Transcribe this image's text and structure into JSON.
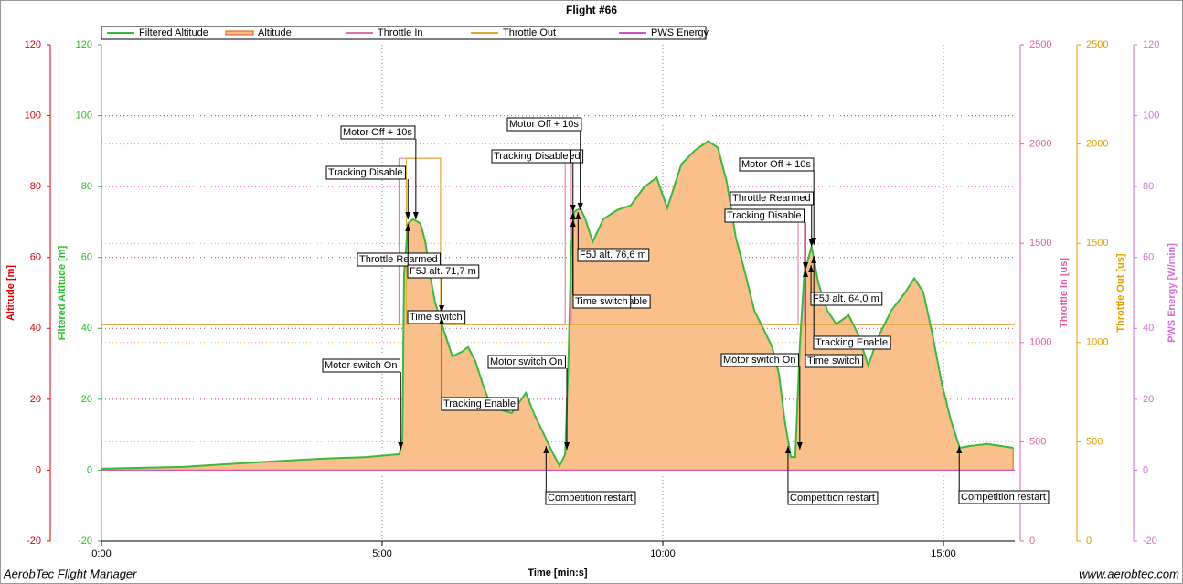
{
  "chart_data": {
    "type": "line",
    "title": "Flight #66",
    "x_label": "Time [min:s]",
    "footer_left": "AerobTec Flight Manager",
    "footer_right": "www.aerobtec.com",
    "xlim": [
      0,
      16.27
    ],
    "xticks": [
      {
        "value": 0,
        "label": "0:00"
      },
      {
        "value": 5,
        "label": "5:00"
      },
      {
        "value": 10,
        "label": "10:00"
      },
      {
        "value": 15,
        "label": "15:00"
      }
    ],
    "grid": true,
    "axes": [
      {
        "label": "Altitude [m]",
        "color": "#dd0000",
        "grid_color": "#e04040",
        "side": "left",
        "lim": [
          -20,
          120
        ],
        "ticks": [
          -20,
          0,
          20,
          40,
          60,
          80,
          100,
          120
        ],
        "grid": true
      },
      {
        "label": "Filtered Altitude [m]",
        "color": "#2eb82e",
        "side": "left",
        "lim": [
          -20,
          120
        ],
        "ticks": [
          -20,
          0,
          20,
          40,
          60,
          80,
          100,
          120
        ],
        "grid": false
      },
      {
        "label": "Throttle In [us]",
        "color": "#e060a0",
        "side": "right",
        "lim": [
          0,
          2500
        ],
        "ticks": [
          0,
          500,
          1000,
          1500,
          2000,
          2500
        ],
        "grid": false
      },
      {
        "label": "Throttle Out [us]",
        "color": "#e0a000",
        "grid_color": "#e8b040",
        "side": "right",
        "lim": [
          0,
          2500
        ],
        "ticks": [
          0,
          500,
          1000,
          1500,
          2000,
          2500
        ],
        "grid": true
      },
      {
        "label": "PWS Energy [W/min]",
        "color": "#d070d8",
        "side": "right",
        "lim": [
          -20,
          120
        ],
        "ticks": [
          -20,
          0,
          20,
          40,
          60,
          80,
          100,
          120
        ],
        "grid": false
      }
    ],
    "x": [
      0.0,
      1.45,
      2.26,
      3.08,
      3.89,
      4.71,
      5.31,
      5.36,
      5.39,
      5.46,
      5.55,
      5.68,
      5.77,
      5.85,
      5.94,
      6.09,
      6.17,
      6.25,
      6.42,
      6.53,
      6.66,
      6.79,
      6.91,
      7.07,
      7.31,
      7.56,
      7.72,
      7.88,
      8.05,
      8.16,
      8.26,
      8.32,
      8.37,
      8.42,
      8.53,
      8.62,
      8.75,
      8.94,
      9.19,
      9.43,
      9.67,
      9.89,
      10.08,
      10.33,
      10.57,
      10.81,
      10.98,
      11.14,
      11.3,
      11.47,
      11.63,
      11.79,
      11.95,
      12.07,
      12.17,
      12.28,
      12.36,
      12.44,
      12.52,
      12.65,
      12.77,
      12.93,
      13.09,
      13.31,
      13.47,
      13.66,
      13.83,
      14.07,
      14.32,
      14.48,
      14.64,
      14.8,
      14.97,
      15.13,
      15.29,
      15.46,
      15.78,
      16.24
    ],
    "series": [
      {
        "name": "Filtered Altitude",
        "color": "#3cb83c",
        "axis": 1,
        "style": "line",
        "values": [
          0.4,
          0.9,
          1.7,
          2.5,
          3.2,
          3.7,
          4.5,
          8.9,
          55.4,
          69.6,
          70.8,
          69.6,
          64.4,
          55.4,
          47.6,
          39.9,
          36.0,
          32.1,
          33.4,
          34.7,
          30.8,
          24.4,
          19.2,
          17.2,
          16.1,
          21.8,
          15.4,
          10.2,
          4.5,
          1.2,
          4.5,
          32.1,
          63.1,
          72.9,
          73.9,
          70.8,
          64.4,
          70.8,
          73.4,
          74.7,
          79.9,
          82.5,
          73.9,
          86.3,
          90.2,
          92.8,
          91.0,
          81.2,
          65.7,
          55.4,
          45.0,
          39.9,
          34.7,
          27.0,
          14.1,
          3.7,
          3.7,
          34.7,
          55.4,
          63.1,
          52.8,
          45.0,
          41.2,
          43.7,
          38.6,
          29.5,
          37.3,
          45.0,
          50.2,
          54.1,
          50.2,
          38.6,
          24.4,
          14.1,
          6.3,
          6.8,
          7.4,
          6.3
        ]
      },
      {
        "name": "Altitude",
        "color": "#e85010",
        "fill": "#f9c08c",
        "axis": 0,
        "style": "area",
        "values": [
          0.4,
          0.9,
          1.7,
          2.5,
          3.2,
          3.7,
          4.5,
          8.9,
          55.4,
          69.6,
          70.8,
          69.6,
          64.4,
          55.4,
          47.6,
          39.9,
          36.0,
          32.1,
          33.4,
          34.7,
          30.8,
          24.4,
          19.2,
          17.2,
          16.1,
          21.8,
          15.4,
          10.2,
          4.5,
          1.2,
          4.5,
          32.1,
          63.1,
          72.9,
          73.9,
          70.8,
          64.4,
          70.8,
          73.4,
          74.7,
          79.9,
          82.5,
          73.9,
          86.3,
          90.2,
          92.8,
          91.0,
          81.2,
          65.7,
          55.4,
          45.0,
          39.9,
          34.7,
          27.0,
          14.1,
          3.7,
          3.7,
          34.7,
          55.4,
          63.1,
          52.8,
          45.0,
          41.2,
          43.7,
          38.6,
          29.5,
          37.3,
          45.0,
          50.2,
          54.1,
          50.2,
          38.6,
          24.4,
          14.1,
          6.3,
          6.8,
          7.4,
          6.3
        ]
      },
      {
        "name": "Throttle In",
        "color": "#e070a8",
        "axis": 2,
        "style": "line",
        "x": [
          0,
          5.3,
          5.3,
          6.04,
          6.04,
          8.26,
          8.26,
          8.37,
          8.37,
          12.41,
          12.41,
          12.52,
          12.52,
          16.27
        ],
        "values": [
          1090,
          1090,
          1928,
          1928,
          1090,
          1090,
          1950,
          1950,
          1090,
          1090,
          1620,
          1620,
          1090,
          1090
        ]
      },
      {
        "name": "Throttle Out",
        "color": "#e0a830",
        "axis": 3,
        "style": "line",
        "x": [
          0,
          5.43,
          5.43,
          6.04,
          6.04,
          16.27
        ],
        "values": [
          1090,
          1090,
          1928,
          1928,
          1090,
          1090
        ]
      },
      {
        "name": "PWS Energy",
        "color": "#d050d0",
        "axis": 4,
        "style": "line",
        "x": [
          0,
          16.27
        ],
        "values": [
          0,
          0
        ]
      }
    ],
    "annotations": [
      {
        "text": "Motor switch On",
        "time": 5.33
      },
      {
        "text": "Tracking Disable",
        "time": 5.46
      },
      {
        "text": "Motor Off + 10s",
        "time": 5.6
      },
      {
        "text": "Throttle Rearmed",
        "time": 6.06
      },
      {
        "text": "F5J alt. 71,7 m",
        "time": 5.46
      },
      {
        "text": "Time switch",
        "time": 6.06
      },
      {
        "text": "Tracking Enable",
        "time": 6.06
      },
      {
        "text": "Competition restart",
        "time": 7.92
      },
      {
        "text": "Motor switch On",
        "time": 8.29
      },
      {
        "text": "Throttle Rearmed",
        "time": 8.53
      },
      {
        "text": "Tracking Disable",
        "time": 8.4
      },
      {
        "text": "Motor Off + 10s",
        "time": 8.53
      },
      {
        "text": "F5J alt. 76,6 m",
        "time": 8.49
      },
      {
        "text": "Tracking Enable",
        "time": 8.4
      },
      {
        "text": "Time switch",
        "time": 8.4
      },
      {
        "text": "Competition restart",
        "time": 12.23
      },
      {
        "text": "Motor switch On",
        "time": 12.44
      },
      {
        "text": "Tracking Disable",
        "time": 12.54
      },
      {
        "text": "Throttle Rearmed",
        "time": 12.65
      },
      {
        "text": "Motor Off + 10s",
        "time": 12.69
      },
      {
        "text": "F5J alt. 64,0 m",
        "time": 12.64
      },
      {
        "text": "Tracking Enable",
        "time": 12.69
      },
      {
        "text": "Time switch",
        "time": 12.54
      },
      {
        "text": "Competition restart",
        "time": 15.28
      }
    ]
  }
}
